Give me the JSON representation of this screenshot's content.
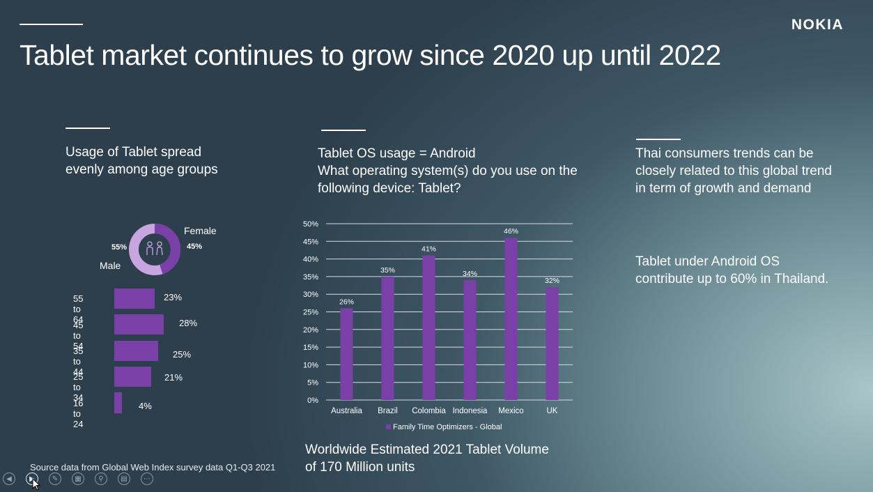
{
  "slide": {
    "title": "Tablet market continues to grow since 2020 up until 2022",
    "logo": "NOKIA",
    "source": "Source data from Global Web Index survey data Q1-Q3 2021"
  },
  "left_panel": {
    "heading_line1": "Usage of Tablet spread",
    "heading_line2": "evenly among age groups",
    "gender": {
      "female_label": "Female",
      "female_value": "45%",
      "male_label": "Male",
      "male_value": "55%",
      "female_fraction": 0.45,
      "male_fraction": 0.55
    },
    "age_groups": [
      {
        "label": "55 to 64",
        "value": 23,
        "value_label": "23%"
      },
      {
        "label": "45 to 54",
        "value": 28,
        "value_label": "28%"
      },
      {
        "label": "35 to 44",
        "value": 25,
        "value_label": "25%"
      },
      {
        "label": "25 to 34",
        "value": 21,
        "value_label": "21%"
      },
      {
        "label": "16 to 24",
        "value": 4,
        "value_label": "4%"
      }
    ]
  },
  "middle_panel": {
    "heading_line1": "Tablet OS usage = Android",
    "heading_line2": "What operating system(s) do you use on the",
    "heading_line3": "following device: Tablet?",
    "footer_line1": "Worldwide Estimated 2021 Tablet Volume",
    "footer_line2": "of 170 Million units"
  },
  "right_panel": {
    "text1_line1": "Thai consumers trends can be",
    "text1_line2": "closely related to this global trend",
    "text1_line3": "in term of growth and demand",
    "text2_line1": "Tablet under Android OS",
    "text2_line2": "contribute up to 60% in Thailand."
  },
  "chart_data": {
    "type": "bar",
    "categories": [
      "Australia",
      "Brazil",
      "Colombia",
      "Indonesia",
      "Mexico",
      "UK"
    ],
    "series": [
      {
        "name": "Family Time Optimizers - Global",
        "values": [
          26,
          35,
          41,
          34,
          46,
          32
        ]
      }
    ],
    "data_labels": [
      "26%",
      "35%",
      "41%",
      "34%",
      "46%",
      "32%"
    ],
    "y_ticks": [
      "0%",
      "5%",
      "10%",
      "15%",
      "20%",
      "25%",
      "30%",
      "35%",
      "40%",
      "45%",
      "50%"
    ],
    "ylim": [
      0,
      50
    ],
    "grid": true,
    "legend_position": "bottom",
    "bar_color": "#7b3fa8"
  },
  "colors": {
    "purple": "#7b3fa8",
    "light_purple": "#c7a6e0"
  },
  "toolbar_icons": [
    "previous-icon",
    "next-icon",
    "pen-icon",
    "slides-icon",
    "zoom-icon",
    "subtitles-icon",
    "more-icon"
  ]
}
